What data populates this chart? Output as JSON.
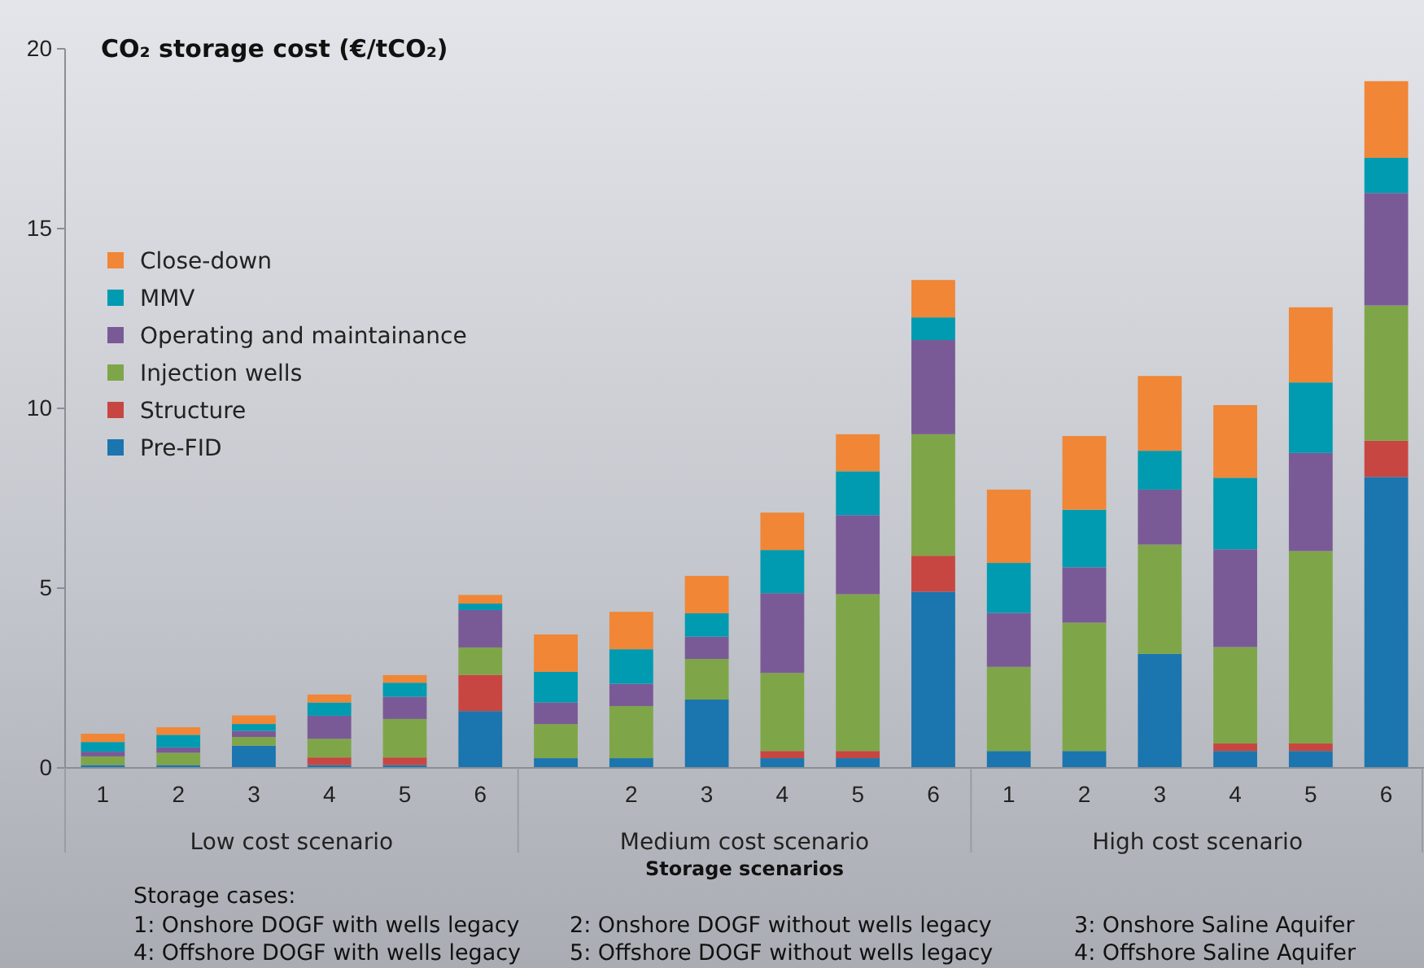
{
  "chart_data": {
    "type": "bar",
    "stacked": true,
    "title": "CO₂ storage cost (€/tCO₂)",
    "xlabel": "Storage scenarios",
    "categories": [
      "1",
      "2",
      "3",
      "4",
      "5",
      "6",
      null,
      "2",
      "3",
      "4",
      "5",
      "6",
      "1",
      "2",
      "3",
      "4",
      "5",
      "6"
    ],
    "series": [
      {
        "name": "Pre-FID",
        "color": "#1b75ae",
        "values": [
          0.08,
          0.08,
          0.62,
          0.08,
          0.08,
          1.58,
          0.27,
          0.27,
          1.9,
          0.27,
          0.27,
          4.9,
          0.47,
          0.47,
          3.17,
          0.47,
          0.47,
          8.09
        ]
      },
      {
        "name": "Structure",
        "color": "#c84641",
        "values": [
          0,
          0,
          0,
          0.21,
          0.21,
          1.01,
          0,
          0,
          0,
          0.2,
          0.2,
          1.0,
          0,
          0,
          0,
          0.21,
          0.21,
          1.01
        ]
      },
      {
        "name": "Injection wells",
        "color": "#7ea648",
        "values": [
          0.24,
          0.34,
          0.24,
          0.52,
          1.07,
          0.76,
          0.95,
          1.45,
          1.13,
          2.17,
          4.36,
          3.38,
          2.34,
          3.57,
          3.04,
          2.68,
          5.35,
          3.76
        ]
      },
      {
        "name": "Operating and maintainance",
        "color": "#7a5a96",
        "values": [
          0.13,
          0.15,
          0.17,
          0.64,
          0.62,
          1.04,
          0.6,
          0.62,
          0.62,
          2.22,
          2.2,
          2.62,
          1.5,
          1.54,
          1.53,
          2.72,
          2.73,
          3.13
        ]
      },
      {
        "name": "MMV",
        "color": "#009bb0",
        "values": [
          0.27,
          0.35,
          0.19,
          0.37,
          0.39,
          0.18,
          0.85,
          0.96,
          0.65,
          1.2,
          1.22,
          0.63,
          1.39,
          1.6,
          1.08,
          1.99,
          1.96,
          0.98
        ]
      },
      {
        "name": "Close-down",
        "color": "#f08636",
        "values": [
          0.23,
          0.21,
          0.24,
          0.22,
          0.21,
          0.24,
          1.04,
          1.04,
          1.04,
          1.04,
          1.03,
          1.04,
          2.04,
          2.05,
          2.08,
          2.02,
          2.09,
          2.13
        ]
      }
    ],
    "ylim": [
      0,
      20
    ],
    "yticks": [
      0,
      5,
      10,
      15,
      20
    ],
    "grid": false,
    "legend": "top left",
    "annotations": [
      "Low cost scenario",
      "Medium cost scenario",
      "High cost scenario",
      "Storage cases:",
      "1: Onshore DOGF with wells legacy",
      "2: Onshore DOGF without wells legacy",
      "3: Onshore Saline Aquifer",
      "4: Offshore DOGF with wells legacy",
      "5: Offshore DOGF without wells legacy",
      "4: Offshore Saline Aquifer"
    ]
  }
}
